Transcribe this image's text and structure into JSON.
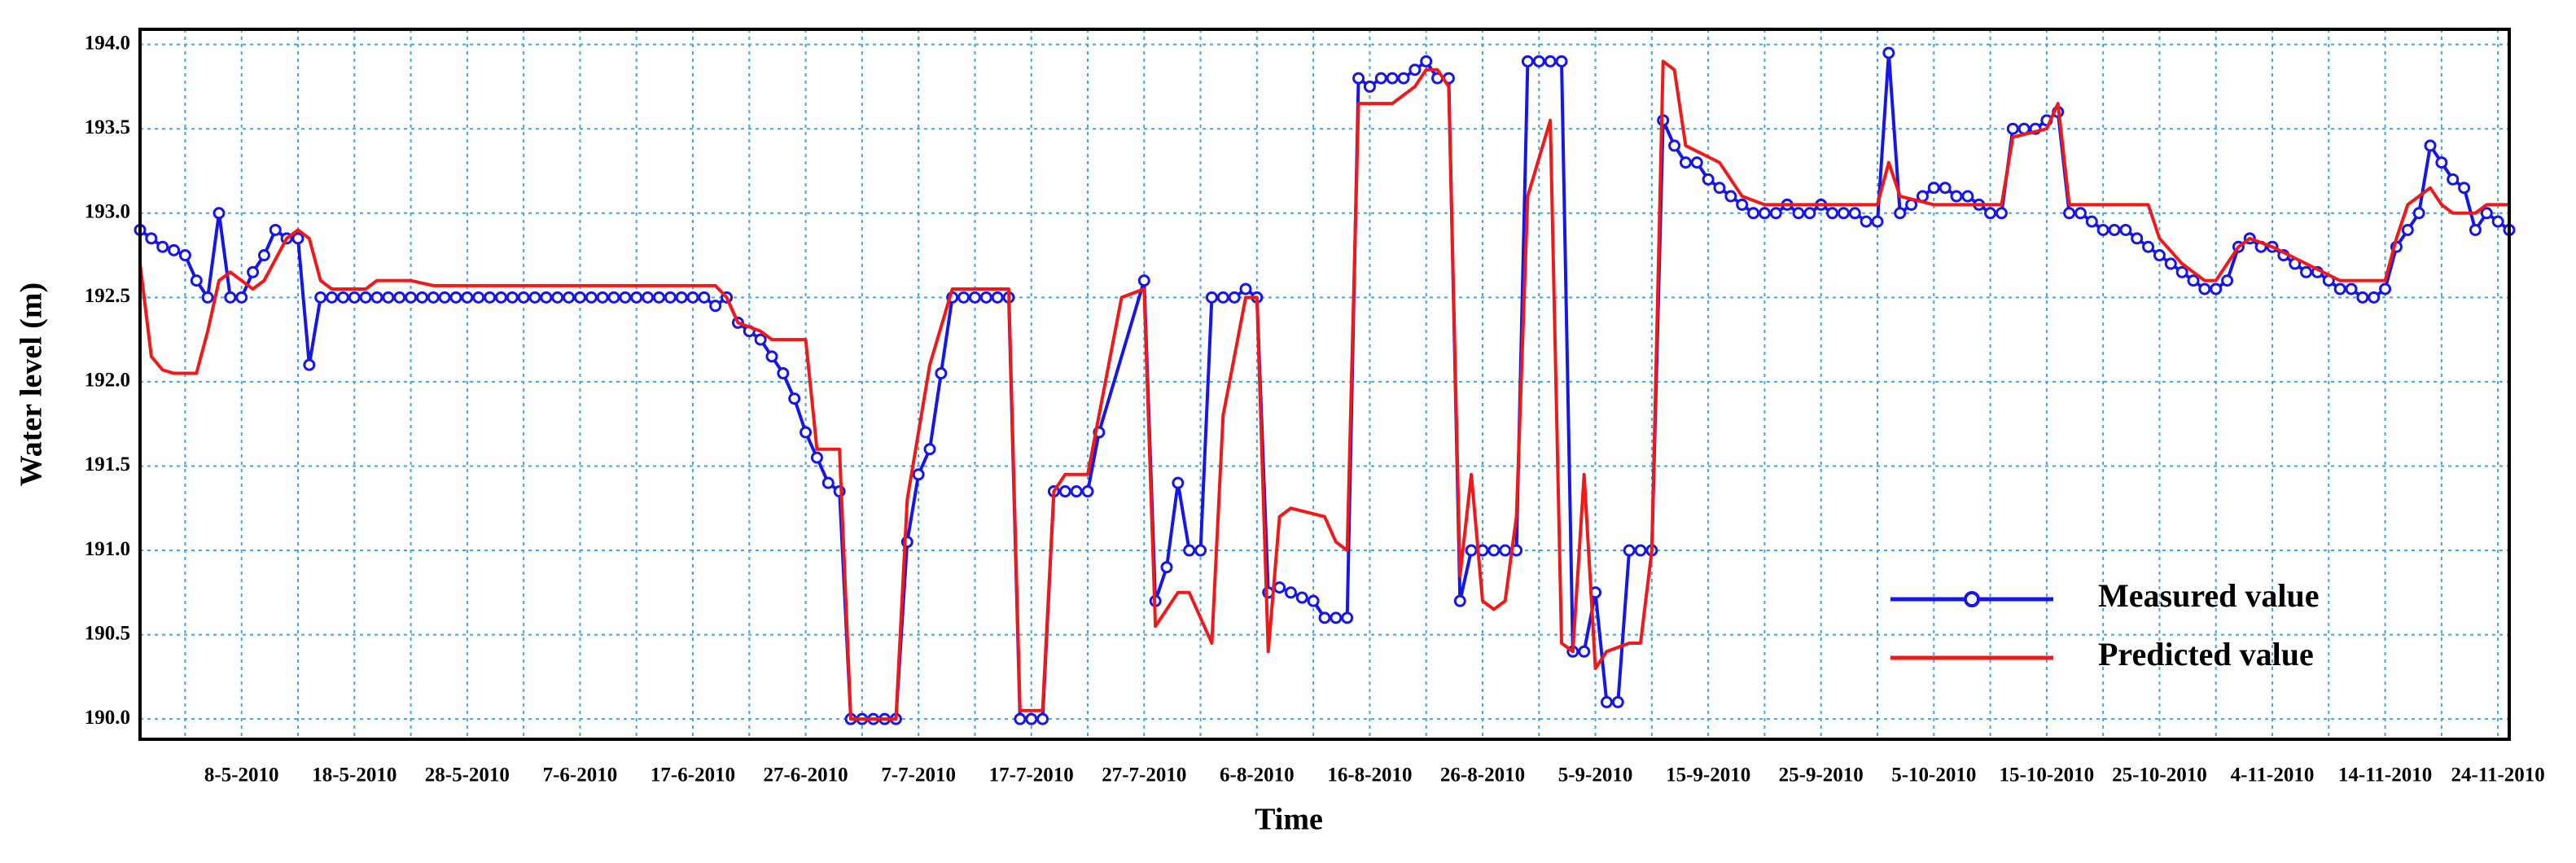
{
  "chart_data": {
    "type": "line",
    "x_label": "Time",
    "y_label": "Water level (m)",
    "xlim": [
      "2010-04-29",
      "2010-11-25"
    ],
    "xticks": [
      {
        "value": "2010-05-08",
        "label": "8-5-2010"
      },
      {
        "value": "2010-05-18",
        "label": "18-5-2010"
      },
      {
        "value": "2010-05-28",
        "label": "28-5-2010"
      },
      {
        "value": "2010-06-07",
        "label": "7-6-2010"
      },
      {
        "value": "2010-06-17",
        "label": "17-6-2010"
      },
      {
        "value": "2010-06-27",
        "label": "27-6-2010"
      },
      {
        "value": "2010-07-07",
        "label": "7-7-2010"
      },
      {
        "value": "2010-07-17",
        "label": "17-7-2010"
      },
      {
        "value": "2010-07-27",
        "label": "27-7-2010"
      },
      {
        "value": "2010-08-06",
        "label": "6-8-2010"
      },
      {
        "value": "2010-08-16",
        "label": "16-8-2010"
      },
      {
        "value": "2010-08-26",
        "label": "26-8-2010"
      },
      {
        "value": "2010-09-05",
        "label": "5-9-2010"
      },
      {
        "value": "2010-09-15",
        "label": "15-9-2010"
      },
      {
        "value": "2010-09-25",
        "label": "25-9-2010"
      },
      {
        "value": "2010-10-05",
        "label": "5-10-2010"
      },
      {
        "value": "2010-10-15",
        "label": "15-10-2010"
      },
      {
        "value": "2010-10-25",
        "label": "25-10-2010"
      },
      {
        "value": "2010-11-04",
        "label": "4-11-2010"
      },
      {
        "value": "2010-11-14",
        "label": "14-11-2010"
      },
      {
        "value": "2010-11-24",
        "label": "24-11-2010"
      }
    ],
    "xminorticks": [
      "2010-05-03",
      "2010-05-13",
      "2010-05-23",
      "2010-06-02",
      "2010-06-12",
      "2010-06-22",
      "2010-07-02",
      "2010-07-12",
      "2010-07-22",
      "2010-08-01",
      "2010-08-11",
      "2010-08-21",
      "2010-08-31",
      "2010-09-10",
      "2010-09-20",
      "2010-09-30",
      "2010-10-10",
      "2010-10-20",
      "2010-10-30",
      "2010-11-09",
      "2010-11-19"
    ],
    "ylim": [
      189.88,
      194.09
    ],
    "yticks": [
      {
        "value": 190,
        "label": "190.0"
      },
      190.5,
      {
        "value": 191,
        "label": "191.0"
      },
      191.5,
      {
        "value": 192,
        "label": "192.0"
      },
      192.5,
      {
        "value": 193,
        "label": "193.0"
      },
      193.5,
      {
        "value": 194,
        "label": "194.0"
      }
    ],
    "grid": true,
    "grid_color": "#3ea6e0",
    "legend": "lower right",
    "series": [
      {
        "name": "Measured value",
        "color": "#1616e8",
        "marker": "circle",
        "x": [
          "2010-04-29",
          "2010-04-30",
          "2010-05-01",
          "2010-05-02",
          "2010-05-03",
          "2010-05-04",
          "2010-05-05",
          "2010-05-06",
          "2010-05-07",
          "2010-05-08",
          "2010-05-09",
          "2010-05-10",
          "2010-05-11",
          "2010-05-12",
          "2010-05-13",
          "2010-05-14",
          "2010-05-15",
          "2010-05-16",
          "2010-05-17",
          "2010-05-18",
          "2010-05-19",
          "2010-05-20",
          "2010-05-21",
          "2010-05-22",
          "2010-05-23",
          "2010-05-24",
          "2010-05-25",
          "2010-05-26",
          "2010-05-27",
          "2010-05-28",
          "2010-05-29",
          "2010-05-30",
          "2010-05-31",
          "2010-06-01",
          "2010-06-02",
          "2010-06-03",
          "2010-06-04",
          "2010-06-05",
          "2010-06-06",
          "2010-06-07",
          "2010-06-08",
          "2010-06-09",
          "2010-06-10",
          "2010-06-11",
          "2010-06-12",
          "2010-06-13",
          "2010-06-14",
          "2010-06-15",
          "2010-06-16",
          "2010-06-17",
          "2010-06-18",
          "2010-06-19",
          "2010-06-20",
          "2010-06-21",
          "2010-06-22",
          "2010-06-23",
          "2010-06-24",
          "2010-06-25",
          "2010-06-26",
          "2010-06-27",
          "2010-06-28",
          "2010-06-29",
          "2010-06-30",
          "2010-07-01",
          "2010-07-02",
          "2010-07-03",
          "2010-07-04",
          "2010-07-05",
          "2010-07-06",
          "2010-07-07",
          "2010-07-08",
          "2010-07-09",
          "2010-07-10",
          "2010-07-11",
          "2010-07-12",
          "2010-07-13",
          "2010-07-14",
          "2010-07-15",
          "2010-07-16",
          "2010-07-17",
          "2010-07-18",
          "2010-07-19",
          "2010-07-20",
          "2010-07-21",
          "2010-07-22",
          "2010-07-23",
          "2010-07-27",
          "2010-07-28",
          "2010-07-29",
          "2010-07-30",
          "2010-07-31",
          "2010-08-01",
          "2010-08-02",
          "2010-08-03",
          "2010-08-04",
          "2010-08-05",
          "2010-08-06",
          "2010-08-07",
          "2010-08-08",
          "2010-08-09",
          "2010-08-10",
          "2010-08-11",
          "2010-08-12",
          "2010-08-13",
          "2010-08-14",
          "2010-08-15",
          "2010-08-16",
          "2010-08-17",
          "2010-08-18",
          "2010-08-19",
          "2010-08-20",
          "2010-08-21",
          "2010-08-22",
          "2010-08-23",
          "2010-08-24",
          "2010-08-25",
          "2010-08-26",
          "2010-08-27",
          "2010-08-28",
          "2010-08-29",
          "2010-08-30",
          "2010-08-31",
          "2010-09-01",
          "2010-09-02",
          "2010-09-03",
          "2010-09-04",
          "2010-09-05",
          "2010-09-06",
          "2010-09-07",
          "2010-09-08",
          "2010-09-09",
          "2010-09-10",
          "2010-09-11",
          "2010-09-12",
          "2010-09-13",
          "2010-09-14",
          "2010-09-15",
          "2010-09-16",
          "2010-09-17",
          "2010-09-18",
          "2010-09-19",
          "2010-09-20",
          "2010-09-21",
          "2010-09-22",
          "2010-09-23",
          "2010-09-24",
          "2010-09-25",
          "2010-09-26",
          "2010-09-27",
          "2010-09-28",
          "2010-09-29",
          "2010-09-30",
          "2010-10-01",
          "2010-10-02",
          "2010-10-03",
          "2010-10-04",
          "2010-10-05",
          "2010-10-06",
          "2010-10-07",
          "2010-10-08",
          "2010-10-09",
          "2010-10-10",
          "2010-10-11",
          "2010-10-12",
          "2010-10-13",
          "2010-10-14",
          "2010-10-15",
          "2010-10-16",
          "2010-10-17",
          "2010-10-18",
          "2010-10-19",
          "2010-10-20",
          "2010-10-21",
          "2010-10-22",
          "2010-10-23",
          "2010-10-24",
          "2010-10-25",
          "2010-10-26",
          "2010-10-27",
          "2010-10-28",
          "2010-10-29",
          "2010-10-30",
          "2010-10-31",
          "2010-11-01",
          "2010-11-02",
          "2010-11-03",
          "2010-11-04",
          "2010-11-05",
          "2010-11-06",
          "2010-11-07",
          "2010-11-08",
          "2010-11-09",
          "2010-11-10",
          "2010-11-11",
          "2010-11-12",
          "2010-11-13",
          "2010-11-14",
          "2010-11-15",
          "2010-11-16",
          "2010-11-17",
          "2010-11-18",
          "2010-11-19",
          "2010-11-20",
          "2010-11-21",
          "2010-11-22",
          "2010-11-23",
          "2010-11-24",
          "2010-11-25"
        ],
        "values": [
          192.9,
          192.85,
          192.8,
          192.78,
          192.75,
          192.6,
          192.5,
          193.0,
          192.5,
          192.5,
          192.65,
          192.75,
          192.9,
          192.85,
          192.85,
          192.1,
          192.5,
          192.5,
          192.5,
          192.5,
          192.5,
          192.5,
          192.5,
          192.5,
          192.5,
          192.5,
          192.5,
          192.5,
          192.5,
          192.5,
          192.5,
          192.5,
          192.5,
          192.5,
          192.5,
          192.5,
          192.5,
          192.5,
          192.5,
          192.5,
          192.5,
          192.5,
          192.5,
          192.5,
          192.5,
          192.5,
          192.5,
          192.5,
          192.5,
          192.5,
          192.5,
          192.45,
          192.5,
          192.35,
          192.3,
          192.25,
          192.15,
          192.05,
          191.9,
          191.7,
          191.55,
          191.4,
          191.35,
          190.0,
          190.0,
          190.0,
          190.0,
          190.0,
          191.05,
          191.45,
          191.6,
          192.05,
          192.5,
          192.5,
          192.5,
          192.5,
          192.5,
          192.5,
          190.0,
          190.0,
          190.0,
          191.35,
          191.35,
          191.35,
          191.35,
          191.7,
          192.6,
          190.7,
          190.9,
          191.4,
          191.0,
          191.0,
          192.5,
          192.5,
          192.5,
          192.55,
          192.5,
          190.75,
          190.78,
          190.75,
          190.72,
          190.7,
          190.6,
          190.6,
          190.6,
          193.8,
          193.75,
          193.8,
          193.8,
          193.8,
          193.85,
          193.9,
          193.8,
          193.8,
          190.7,
          191.0,
          191.0,
          191.0,
          191.0,
          191.0,
          193.9,
          193.9,
          193.9,
          193.9,
          190.4,
          190.4,
          190.75,
          190.1,
          190.1,
          191.0,
          191.0,
          191.0,
          193.55,
          193.4,
          193.3,
          193.3,
          193.2,
          193.15,
          193.1,
          193.05,
          193.0,
          193.0,
          193.0,
          193.05,
          193.0,
          193.0,
          193.05,
          193.0,
          193.0,
          193.0,
          192.95,
          192.95,
          193.95,
          193.0,
          193.05,
          193.1,
          193.15,
          193.15,
          193.1,
          193.1,
          193.05,
          193.0,
          193.0,
          193.5,
          193.5,
          193.5,
          193.55,
          193.6,
          193.0,
          193.0,
          192.95,
          192.9,
          192.9,
          192.9,
          192.85,
          192.8,
          192.75,
          192.7,
          192.65,
          192.6,
          192.55,
          192.55,
          192.6,
          192.8,
          192.85,
          192.8,
          192.8,
          192.75,
          192.7,
          192.65,
          192.65,
          192.6,
          192.55,
          192.55,
          192.5,
          192.5,
          192.55,
          192.8,
          192.9,
          193.0,
          193.4,
          193.3,
          193.2,
          193.15,
          192.9,
          193.0,
          192.95,
          192.9
        ]
      },
      {
        "name": "Predicted value",
        "color": "#f01818",
        "x": [
          "2010-04-29",
          "2010-04-30",
          "2010-05-01",
          "2010-05-02",
          "2010-05-04",
          "2010-05-05",
          "2010-05-06",
          "2010-05-07",
          "2010-05-09",
          "2010-05-10",
          "2010-05-12",
          "2010-05-13",
          "2010-05-14",
          "2010-05-15",
          "2010-05-16",
          "2010-05-19",
          "2010-05-20",
          "2010-05-23",
          "2010-05-25",
          "2010-06-19",
          "2010-06-20",
          "2010-06-21",
          "2010-06-23",
          "2010-06-24",
          "2010-06-27",
          "2010-06-28",
          "2010-06-30",
          "2010-07-01",
          "2010-07-05",
          "2010-07-06",
          "2010-07-08",
          "2010-07-10",
          "2010-07-15",
          "2010-07-16",
          "2010-07-18",
          "2010-07-19",
          "2010-07-20",
          "2010-07-22",
          "2010-07-25",
          "2010-07-27",
          "2010-07-28",
          "2010-07-30",
          "2010-07-31",
          "2010-08-02",
          "2010-08-03",
          "2010-08-05",
          "2010-08-06",
          "2010-08-07",
          "2010-08-08",
          "2010-08-09",
          "2010-08-12",
          "2010-08-13",
          "2010-08-14",
          "2010-08-15",
          "2010-08-18",
          "2010-08-20",
          "2010-08-21",
          "2010-08-22",
          "2010-08-23",
          "2010-08-24",
          "2010-08-25",
          "2010-08-26",
          "2010-08-27",
          "2010-08-28",
          "2010-08-29",
          "2010-08-30",
          "2010-09-01",
          "2010-09-02",
          "2010-09-03",
          "2010-09-04",
          "2010-09-05",
          "2010-09-06",
          "2010-09-08",
          "2010-09-09",
          "2010-09-10",
          "2010-09-11",
          "2010-09-12",
          "2010-09-13",
          "2010-09-16",
          "2010-09-18",
          "2010-09-20",
          "2010-09-30",
          "2010-10-01",
          "2010-10-02",
          "2010-10-05",
          "2010-10-11",
          "2010-10-12",
          "2010-10-15",
          "2010-10-16",
          "2010-10-17",
          "2010-10-24",
          "2010-10-25",
          "2010-10-27",
          "2010-10-29",
          "2010-10-30",
          "2010-11-01",
          "2010-11-02",
          "2010-11-04",
          "2010-11-10",
          "2010-11-14",
          "2010-11-15",
          "2010-11-16",
          "2010-11-17",
          "2010-11-18",
          "2010-11-19",
          "2010-11-20",
          "2010-11-22",
          "2010-11-23",
          "2010-11-25"
        ],
        "values": [
          192.7,
          192.15,
          192.07,
          192.05,
          192.05,
          192.3,
          192.6,
          192.65,
          192.55,
          192.6,
          192.85,
          192.9,
          192.85,
          192.6,
          192.55,
          192.55,
          192.6,
          192.6,
          192.57,
          192.57,
          192.5,
          192.35,
          192.3,
          192.25,
          192.25,
          191.6,
          191.6,
          190.0,
          190.0,
          191.3,
          192.1,
          192.55,
          192.55,
          190.05,
          190.05,
          191.35,
          191.45,
          191.45,
          192.5,
          192.55,
          190.55,
          190.75,
          190.75,
          190.45,
          191.8,
          192.5,
          192.5,
          190.4,
          191.2,
          191.25,
          191.2,
          191.05,
          191.0,
          193.65,
          193.65,
          193.75,
          193.85,
          193.85,
          193.75,
          190.85,
          191.45,
          190.7,
          190.65,
          190.7,
          191.2,
          193.1,
          193.55,
          190.45,
          190.4,
          191.45,
          190.3,
          190.4,
          190.45,
          190.45,
          191.0,
          193.9,
          193.85,
          193.4,
          193.3,
          193.1,
          193.05,
          193.05,
          193.3,
          193.1,
          193.05,
          193.05,
          193.45,
          193.5,
          193.65,
          193.05,
          193.05,
          192.85,
          192.7,
          192.6,
          192.6,
          192.8,
          192.85,
          192.8,
          192.6,
          192.6,
          192.85,
          193.05,
          193.1,
          193.15,
          193.05,
          193.0,
          193.0,
          193.05,
          193.05
        ]
      }
    ]
  }
}
